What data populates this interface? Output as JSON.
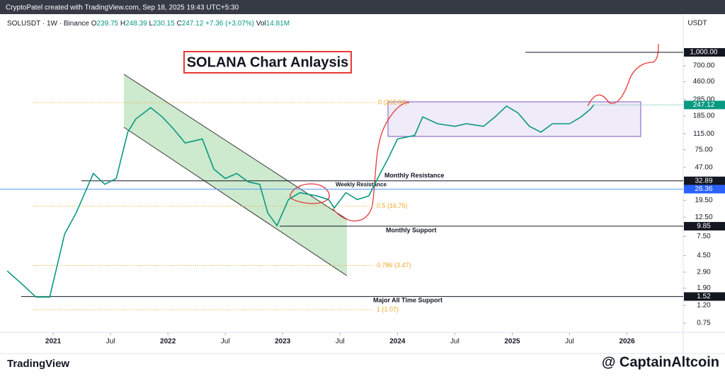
{
  "header": {
    "credit": "CryptoPatel created with TradingView.com, Sep 18, 2025 19:43 UTC+5:30"
  },
  "symbol_bar": {
    "symbol": "SOLUSDT · 1W · Binance",
    "open": {
      "prefix": "O",
      "value": 239.75
    },
    "high": {
      "prefix": "H",
      "value": 248.39
    },
    "low": {
      "prefix": "L",
      "value": 230.15
    },
    "close": {
      "prefix": "C",
      "value": 247.12
    },
    "change": {
      "value": 7.36,
      "label": "+7.36"
    },
    "change_pct": {
      "value": 3.07,
      "label": "(+3.07%)"
    },
    "volume": {
      "prefix": "Vol",
      "value": 14810000,
      "label": "14.81M"
    }
  },
  "footer": {
    "brand": "TradingView",
    "handle": "@ CaptainAltcoin"
  },
  "chart_data": {
    "type": "line",
    "title": "SOLANA Chart Anlaysis",
    "color": "#089981",
    "log_scale": true,
    "y_unit": "USDT",
    "x": [
      2020.6,
      2020.75,
      2020.85,
      2020.97,
      2021.1,
      2021.2,
      2021.35,
      2021.45,
      2021.55,
      2021.65,
      2021.72,
      2021.85,
      2021.95,
      2022.05,
      2022.15,
      2022.3,
      2022.4,
      2022.5,
      2022.6,
      2022.7,
      2022.8,
      2022.87,
      2022.95,
      2023.05,
      2023.15,
      2023.3,
      2023.4,
      2023.45,
      2023.55,
      2023.65,
      2023.75,
      2023.85,
      2023.92,
      2024.0,
      2024.15,
      2024.22,
      2024.35,
      2024.5,
      2024.6,
      2024.75,
      2024.85,
      2024.95,
      2025.05,
      2025.15,
      2025.25,
      2025.35,
      2025.5,
      2025.6,
      2025.68,
      2025.71
    ],
    "values": [
      3,
      2,
      1.5,
      1.5,
      8,
      14,
      40,
      30,
      35,
      120,
      170,
      230,
      180,
      130,
      90,
      100,
      45,
      35,
      40,
      32,
      30,
      14,
      10,
      20,
      24,
      22,
      20,
      16,
      24,
      20,
      22,
      40,
      60,
      100,
      110,
      180,
      150,
      140,
      150,
      140,
      180,
      240,
      200,
      140,
      120,
      150,
      150,
      180,
      220,
      247.12
    ],
    "xlim": [
      2020.537,
      2026.49
    ],
    "xticks": [
      {
        "value": 2021,
        "label": "2021"
      },
      {
        "value": 2021.5,
        "label": "Jul"
      },
      {
        "value": 2022,
        "label": "2022"
      },
      {
        "value": 2022.5,
        "label": "Jul"
      },
      {
        "value": 2023,
        "label": "2023"
      },
      {
        "value": 2023.5,
        "label": "Jul"
      },
      {
        "value": 2024,
        "label": "2024"
      },
      {
        "value": 2024.5,
        "label": "Jul"
      },
      {
        "value": 2025,
        "label": "2025"
      },
      {
        "value": 2025.5,
        "label": "Jul"
      },
      {
        "value": 2026,
        "label": "2026"
      }
    ],
    "ylim": [
      0.587,
      1896
    ],
    "yticks": [
      {
        "value": 700,
        "label": "700.00"
      },
      {
        "value": 460,
        "label": "460.00"
      },
      {
        "value": 285,
        "label": "285.00"
      },
      {
        "value": 185,
        "label": "185.00"
      },
      {
        "value": 115,
        "label": "115.00"
      },
      {
        "value": 75,
        "label": "75.00"
      },
      {
        "value": 47,
        "label": "47.00"
      },
      {
        "value": 19.5,
        "label": "19.50"
      },
      {
        "value": 12.5,
        "label": "12.50"
      },
      {
        "value": 7.5,
        "label": "7.50"
      },
      {
        "value": 4.5,
        "label": "4.50"
      },
      {
        "value": 2.9,
        "label": "2.90"
      },
      {
        "value": 1.9,
        "label": "1.90"
      },
      {
        "value": 1.2,
        "label": "1.20"
      },
      {
        "value": 0.75,
        "label": "0.75"
      }
    ],
    "last_price": {
      "value": 247.12,
      "label": "247.12"
    },
    "levels": [
      {
        "value": 1000,
        "badge": "1,000.00"
      },
      {
        "value": 32.89,
        "label": "Monthly Resistance",
        "badge": "32.89"
      },
      {
        "value": 26.36,
        "label": "Weekly Resistance",
        "badge": "26.36"
      },
      {
        "value": 9.85,
        "label": "Monthly Support",
        "badge": "9.85"
      },
      {
        "value": 1.52,
        "label": "Major All Time Support",
        "badge": "1.52"
      }
    ],
    "fib_levels": [
      {
        "value": 262.84,
        "label": "0 (262.84)"
      },
      {
        "value": 16.75,
        "label": "0.5 (16.75)"
      },
      {
        "value": 3.47,
        "label": "0.786 (3.47)"
      },
      {
        "value": 1.07,
        "label": "1 (1.07)"
      }
    ]
  }
}
